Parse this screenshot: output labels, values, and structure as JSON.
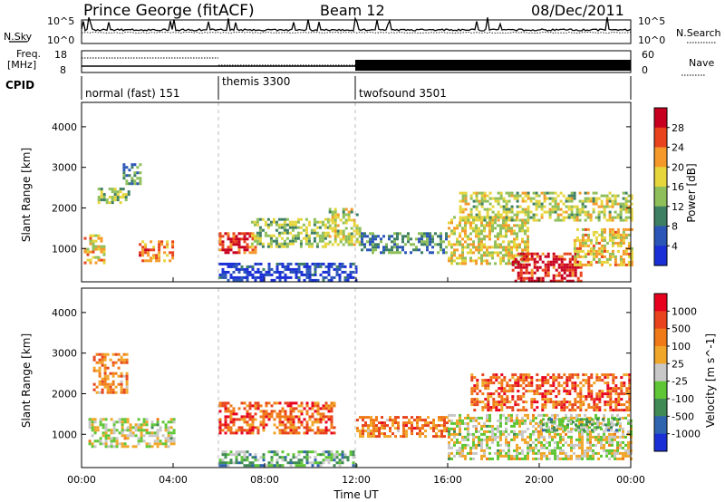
{
  "header": {
    "station": "Prince George (fitACF)",
    "beam": "Beam 12",
    "date": "08/Dec/2011"
  },
  "noise_panel": {
    "left_label": "N.Sky",
    "right_label": "N.Search",
    "ticks_top": "10^5",
    "ticks_bottom": "10^0"
  },
  "freq_panel": {
    "left_label_1": "Freq.",
    "left_label_2": "[MHz]",
    "left_ticks": [
      "18",
      "8"
    ],
    "right_label": "Nave",
    "right_ticks": [
      "60",
      "0"
    ]
  },
  "cpid": {
    "label": "CPID",
    "modes": [
      {
        "name": "normal (fast) 151",
        "start_h": 0,
        "end_h": 6
      },
      {
        "name": "themis 3300",
        "start_h": 6,
        "end_h": 12
      },
      {
        "name": "twofsound 3501",
        "start_h": 12,
        "end_h": 24
      }
    ]
  },
  "chart_data": [
    {
      "type": "heatmap",
      "quantity": "Power",
      "ylabel": "Slant Range [km]",
      "ylim": [
        180,
        4600
      ],
      "yticks": [
        1000,
        2000,
        3000,
        4000
      ],
      "colorbar_label": "Power [dB]",
      "colorbar_ticks": [
        "4",
        "8",
        "12",
        "16",
        "20",
        "24",
        "28"
      ],
      "colorbar_range": [
        0,
        32
      ],
      "colors": [
        "#1a2fd6",
        "#2b56b8",
        "#3d7f63",
        "#8fbf5a",
        "#e6d53b",
        "#f59a2a",
        "#e8431c",
        "#c8001f"
      ],
      "echo_regions": [
        {
          "start_h": 0.1,
          "end_h": 1.0,
          "range_km": [
            650,
            1350
          ],
          "level": 0.6
        },
        {
          "start_h": 0.7,
          "end_h": 2.1,
          "range_km": [
            2100,
            2500
          ],
          "level": 0.45
        },
        {
          "start_h": 1.8,
          "end_h": 2.6,
          "range_km": [
            2600,
            3100
          ],
          "level": 0.3
        },
        {
          "start_h": 2.5,
          "end_h": 4.0,
          "range_km": [
            700,
            1200
          ],
          "level": 0.75
        },
        {
          "start_h": 6.0,
          "end_h": 7.6,
          "range_km": [
            900,
            1400
          ],
          "level": 0.85
        },
        {
          "start_h": 6.0,
          "end_h": 12.0,
          "range_km": [
            220,
            650
          ],
          "level": 0.1
        },
        {
          "start_h": 7.4,
          "end_h": 10.8,
          "range_km": [
            1050,
            1750
          ],
          "level": 0.45
        },
        {
          "start_h": 10.8,
          "end_h": 12.2,
          "range_km": [
            1100,
            2000
          ],
          "level": 0.5
        },
        {
          "start_h": 12.2,
          "end_h": 16.0,
          "range_km": [
            900,
            1400
          ],
          "level": 0.3
        },
        {
          "start_h": 16.0,
          "end_h": 19.5,
          "range_km": [
            600,
            1800
          ],
          "level": 0.55
        },
        {
          "start_h": 18.8,
          "end_h": 21.8,
          "range_km": [
            200,
            900
          ],
          "level": 0.9
        },
        {
          "start_h": 16.5,
          "end_h": 24.0,
          "range_km": [
            1700,
            2400
          ],
          "level": 0.5
        },
        {
          "start_h": 21.5,
          "end_h": 24.0,
          "range_km": [
            600,
            1500
          ],
          "level": 0.6
        }
      ]
    },
    {
      "type": "heatmap",
      "quantity": "Velocity",
      "ylabel": "Slant Range [km]",
      "ylim": [
        180,
        4600
      ],
      "yticks": [
        1000,
        2000,
        3000,
        4000
      ],
      "xlabel": "Time UT",
      "xticks": [
        "00:00",
        "04:00",
        "08:00",
        "12:00",
        "16:00",
        "20:00",
        "00:00"
      ],
      "xlim_hours": [
        0,
        24
      ],
      "colorbar_label": "Velocity [m s^-1]",
      "colorbar_ticks": [
        "1000",
        "500",
        "100",
        "25",
        "-25",
        "-100",
        "-500",
        "-1000"
      ],
      "colors": [
        "#1a2fd6",
        "#2e63b0",
        "#3f8a55",
        "#5fc635",
        "#c8c8c8",
        "#f0a628",
        "#f07a18",
        "#e8431c",
        "#e8001f"
      ],
      "echo_regions": [
        {
          "start_h": 0.3,
          "end_h": 4.0,
          "range_km": [
            700,
            1400
          ],
          "level": 0.5
        },
        {
          "start_h": 0.5,
          "end_h": 2.0,
          "range_km": [
            2000,
            3000
          ],
          "level": 0.7
        },
        {
          "start_h": 6.0,
          "end_h": 12.0,
          "range_km": [
            250,
            600
          ],
          "level": 0.35
        },
        {
          "start_h": 6.0,
          "end_h": 11.0,
          "range_km": [
            1000,
            1800
          ],
          "level": 0.78
        },
        {
          "start_h": 12.0,
          "end_h": 16.0,
          "range_km": [
            950,
            1450
          ],
          "level": 0.72
        },
        {
          "start_h": 16.0,
          "end_h": 24.0,
          "range_km": [
            400,
            1500
          ],
          "level": 0.5
        },
        {
          "start_h": 17.0,
          "end_h": 24.0,
          "range_km": [
            1600,
            2500
          ],
          "level": 0.78
        },
        {
          "start_h": 20.0,
          "end_h": 23.5,
          "range_km": [
            1100,
            1400
          ],
          "level": 0.38
        }
      ]
    }
  ]
}
